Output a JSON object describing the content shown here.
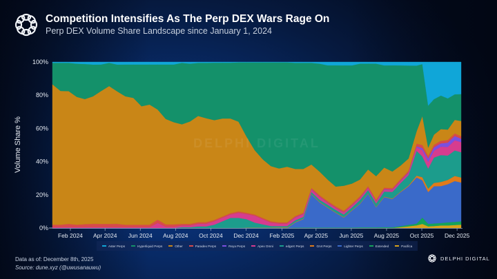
{
  "header": {
    "title": "Competition Intensifies As The Perp DEX Wars Rage On",
    "subtitle": "Perp DEX Volume Share Landscape since January 1, 2024",
    "logo_icon": "delphi-knot-icon"
  },
  "footer": {
    "data_as_of": "Data as of: December 8th, 2025",
    "source": "Source: dune.xyz (@uwusanauwu)"
  },
  "brand": {
    "name": "DELPHI DIGITAL",
    "icon": "delphi-knot-icon"
  },
  "watermark": "DELPHI DIGITAL",
  "chart_data": {
    "type": "area",
    "stacked": true,
    "title": "Perp DEX Volume Share Landscape since January 1, 2024",
    "ylabel": "Volume Share %",
    "xlabel": "",
    "ylim": [
      0,
      100
    ],
    "yticks": [
      "0%",
      "20%",
      "40%",
      "60%",
      "80%",
      "100%"
    ],
    "ytick_values": [
      0,
      20,
      40,
      60,
      80,
      100
    ],
    "xticks": [
      "Feb 2024",
      "Apr 2024",
      "Jun 2024",
      "Aug 2024",
      "Oct 2024",
      "Dec 2024",
      "Feb 2025",
      "Apr 2025",
      "Jun 2025",
      "Aug 2025",
      "Oct 2025",
      "Dec 2025"
    ],
    "xtick_days": [
      31,
      91,
      152,
      213,
      274,
      335,
      397,
      456,
      517,
      578,
      639,
      700
    ],
    "x_range_days": [
      0,
      707
    ],
    "x_start": "2024-01-01",
    "legend_position": "bottom",
    "x_days": [
      0,
      14,
      28,
      42,
      56,
      70,
      84,
      98,
      112,
      126,
      140,
      154,
      168,
      182,
      196,
      210,
      224,
      238,
      252,
      266,
      280,
      294,
      308,
      322,
      336,
      350,
      364,
      378,
      392,
      406,
      420,
      434,
      448,
      462,
      476,
      490,
      504,
      518,
      532,
      546,
      560,
      574,
      588,
      602,
      616,
      630,
      640,
      650,
      660,
      672,
      684,
      696,
      707
    ],
    "series": [
      {
        "name": "Pacifica",
        "color": "#d9a21b",
        "values": [
          0,
          0,
          0,
          0,
          0,
          0,
          0,
          0,
          0,
          0,
          0,
          0,
          0,
          0,
          0,
          0,
          0,
          0,
          0,
          0,
          0,
          0,
          0,
          0,
          0,
          0,
          0,
          0,
          0,
          0,
          0,
          0,
          0,
          0,
          0,
          0,
          0,
          0,
          0,
          0,
          0,
          0,
          0,
          0.5,
          1,
          1.5,
          2,
          1,
          1.2,
          1.5,
          1.5,
          1.8,
          2
        ]
      },
      {
        "name": "Extended",
        "color": "#16a35a",
        "values": [
          0,
          0,
          0,
          0,
          0,
          0,
          0,
          0,
          0,
          0,
          0,
          0,
          0,
          0,
          0,
          0,
          0,
          0,
          0,
          0,
          0,
          0,
          0,
          0,
          0,
          0,
          0,
          0,
          0,
          0,
          0.3,
          0.3,
          0.3,
          0.3,
          0.3,
          0.3,
          0.3,
          0.3,
          0.4,
          0.4,
          0.4,
          0.5,
          0.5,
          0.6,
          0.8,
          1,
          3,
          1.5,
          1.5,
          1.5,
          1.8,
          1.8,
          2
        ]
      },
      {
        "name": "Lighter Perps",
        "color": "#3a6ac9",
        "values": [
          0,
          0,
          0,
          0,
          0,
          0,
          0,
          0,
          0,
          0,
          0,
          0,
          0,
          0,
          0,
          0,
          0,
          0,
          0,
          0,
          0,
          0,
          0,
          0,
          0,
          0,
          0,
          0,
          0,
          0,
          3,
          5,
          20,
          15,
          12,
          9,
          6,
          10,
          14,
          20,
          12,
          18,
          17,
          20,
          22,
          26,
          18,
          19,
          22,
          22,
          22,
          24,
          23
        ]
      },
      {
        "name": "Grvt Perps",
        "color": "#e07b1a",
        "values": [
          0,
          0,
          0,
          0,
          0,
          0,
          0,
          0,
          0,
          0,
          0,
          0,
          0,
          0,
          0,
          0,
          0,
          0,
          0,
          0,
          0,
          0,
          0,
          0,
          0.2,
          0.2,
          0.2,
          0.2,
          0.3,
          0.3,
          0.3,
          0.3,
          0.3,
          0.3,
          0.3,
          0.3,
          0.3,
          0.3,
          0.3,
          0.3,
          0.3,
          0.3,
          0.3,
          0.3,
          0.4,
          1,
          1.5,
          2,
          2,
          2.5,
          2.5,
          3,
          3
        ]
      },
      {
        "name": "edgeX Perps",
        "color": "#1c9c8c",
        "values": [
          0,
          0,
          0,
          0,
          0,
          0,
          0,
          0,
          0,
          0,
          0,
          0,
          0,
          0,
          0,
          0,
          0.5,
          0.5,
          1,
          1,
          2,
          4,
          6,
          6,
          5,
          3,
          2,
          1,
          0.8,
          0.8,
          1,
          1,
          1,
          1.2,
          1.5,
          1.5,
          1.5,
          1.5,
          2,
          2,
          2,
          3,
          4,
          5,
          6,
          14,
          10,
          12,
          15,
          16,
          14,
          15,
          15
        ]
      },
      {
        "name": "Apex Omni",
        "color": "#d63c8f",
        "values": [
          0.5,
          0.5,
          0.5,
          0.5,
          0.5,
          0.5,
          0.5,
          0.5,
          0.5,
          0.5,
          0.5,
          0.5,
          0.5,
          3,
          0.7,
          0.7,
          1,
          1,
          1.5,
          1.5,
          2,
          2,
          2,
          3,
          3,
          4,
          3,
          2,
          1.5,
          1.5,
          1.5,
          1.5,
          1.5,
          1.5,
          1,
          1,
          1,
          1,
          1,
          1,
          1,
          1,
          1,
          1,
          1,
          2,
          3,
          4,
          4,
          5,
          5,
          6,
          6
        ]
      },
      {
        "name": "Reya Perps",
        "color": "#7b4fe0",
        "values": [
          0,
          0,
          0,
          0,
          0,
          0,
          0,
          0,
          0,
          0,
          0,
          0,
          0,
          0,
          0,
          0,
          0,
          0,
          0,
          0,
          0,
          0,
          0,
          0,
          0,
          0,
          0,
          0,
          0,
          0,
          0.2,
          0.2,
          0.2,
          0.2,
          0.2,
          0.2,
          0.2,
          0.2,
          0.2,
          0.2,
          0.2,
          0.3,
          0.3,
          0.3,
          0.4,
          0.5,
          1,
          2,
          2,
          2,
          2.5,
          2.5,
          2
        ]
      },
      {
        "name": "Paradex Perps",
        "color": "#d84a4a",
        "values": [
          1.5,
          1.5,
          2,
          1.5,
          1.8,
          2,
          2,
          2,
          2,
          1.5,
          1.5,
          1.5,
          1.5,
          2,
          1.5,
          1.5,
          1,
          1,
          1,
          1,
          0.8,
          0.8,
          0.8,
          0.8,
          0.8,
          0.8,
          0.8,
          0.8,
          0.8,
          0.8,
          0.8,
          0.8,
          0.8,
          1,
          1,
          1,
          1,
          1,
          1,
          1,
          1,
          1,
          1,
          1,
          1,
          1.5,
          1.5,
          1.5,
          1.5,
          1.5,
          1.5,
          1.5,
          1.5
        ]
      },
      {
        "name": "Other",
        "color": "#c98617",
        "values": [
          85,
          81,
          80,
          77,
          75,
          76,
          80,
          83,
          79,
          77,
          76,
          71,
          72,
          66,
          64,
          62,
          60,
          62,
          64,
          62,
          59,
          58,
          56,
          53,
          45,
          38,
          35,
          33,
          32,
          33,
          28,
          26,
          14,
          14,
          13,
          12,
          15,
          12,
          10,
          10,
          14,
          12,
          10,
          8,
          7,
          7,
          14,
          5,
          6,
          7,
          6,
          8,
          9
        ]
      },
      {
        "name": "Hyperliquid Perps",
        "color": "#14916a",
        "values": [
          13,
          17,
          17,
          20,
          21,
          19,
          16,
          14,
          16,
          19,
          20,
          25,
          24,
          27,
          33,
          35,
          37,
          35,
          32,
          33,
          34,
          33,
          33,
          35,
          44,
          52,
          58,
          62,
          63,
          62,
          63,
          63,
          61,
          64,
          69,
          74,
          72,
          70,
          69,
          63,
          67,
          61,
          64,
          59,
          53,
          37,
          25,
          25,
          21,
          20,
          18,
          15,
          16
        ]
      },
      {
        "name": "Aster Perps",
        "color": "#10a6d8",
        "values": [
          0.5,
          0.5,
          0.5,
          1,
          1.2,
          1.5,
          1.5,
          0.5,
          1.5,
          1.5,
          1.5,
          1.5,
          1.5,
          1.5,
          1.5,
          1.5,
          0.5,
          1,
          0.5,
          0.5,
          0.4,
          0.4,
          0.4,
          0.2,
          0.2,
          0.2,
          0.2,
          0.2,
          0.2,
          0.2,
          0.5,
          0.5,
          0.5,
          1,
          2,
          2,
          2,
          2,
          1,
          1,
          1,
          2,
          2,
          2,
          2,
          2,
          1,
          26,
          22,
          20,
          21,
          19,
          19
        ]
      }
    ]
  }
}
